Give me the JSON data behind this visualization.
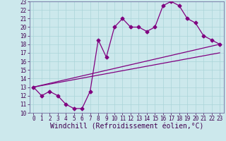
{
  "title": "",
  "xlabel": "Windchill (Refroidissement éolien,°C)",
  "ylabel": "",
  "background_color": "#cce8ec",
  "line_color": "#800080",
  "xlim": [
    -0.5,
    23.5
  ],
  "ylim": [
    10,
    23
  ],
  "xticks": [
    0,
    1,
    2,
    3,
    4,
    5,
    6,
    7,
    8,
    9,
    10,
    11,
    12,
    13,
    14,
    15,
    16,
    17,
    18,
    19,
    20,
    21,
    22,
    23
  ],
  "yticks": [
    10,
    11,
    12,
    13,
    14,
    15,
    16,
    17,
    18,
    19,
    20,
    21,
    22,
    23
  ],
  "series1_x": [
    0,
    1,
    2,
    3,
    4,
    5,
    6,
    7,
    8,
    9,
    10,
    11,
    12,
    13,
    14,
    15,
    16,
    17,
    18,
    19,
    20,
    21,
    22,
    23
  ],
  "series1_y": [
    13,
    12,
    12.5,
    12,
    11,
    10.5,
    10.5,
    12.5,
    18.5,
    16.5,
    20,
    21,
    20,
    20,
    19.5,
    20,
    22.5,
    23,
    22.5,
    21,
    20.5,
    19,
    18.5,
    18
  ],
  "series2_x": [
    0,
    23
  ],
  "series2_y": [
    13,
    18
  ],
  "series3_x": [
    0,
    23
  ],
  "series3_y": [
    13,
    17
  ],
  "marker": "D",
  "markersize": 2.5,
  "linewidth": 0.9,
  "tick_fontsize": 5.5,
  "xlabel_fontsize": 7.0,
  "grid_color": "#aad4d8",
  "grid_linewidth": 0.5,
  "spine_color": "#7070a0",
  "tick_color": "#400050",
  "label_color": "#400050"
}
